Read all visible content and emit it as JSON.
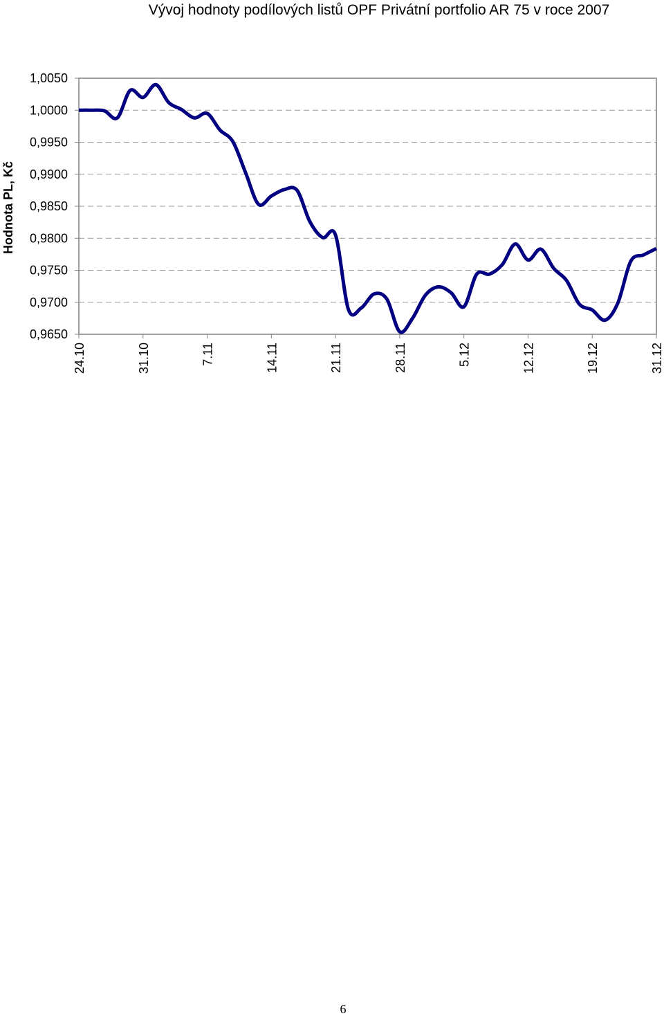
{
  "chart_data": {
    "type": "line",
    "title": "Vývoj hodnoty podílových listů OPF Privátní portfolio AR 75 v roce 2007",
    "y_label": "Hodnota PL, Kč",
    "categories": [
      "24.10",
      null,
      null,
      null,
      null,
      "31.10",
      null,
      null,
      null,
      null,
      "7.11",
      null,
      null,
      null,
      null,
      "14.11",
      null,
      null,
      null,
      null,
      "21.11",
      null,
      null,
      null,
      null,
      "28.11",
      null,
      null,
      null,
      null,
      "5.12",
      null,
      null,
      null,
      null,
      "12.12",
      null,
      null,
      null,
      null,
      "19.12",
      null,
      null,
      null,
      null,
      "31.12"
    ],
    "series": [
      {
        "color": "#000080",
        "values": [
          1.0,
          1.0,
          0.9999,
          0.9988,
          1.0031,
          1.002,
          1.004,
          1.0012,
          1.0001,
          0.9988,
          0.9995,
          0.9969,
          0.9951,
          0.9902,
          0.9853,
          0.9866,
          0.9876,
          0.9875,
          0.9826,
          0.9801,
          0.9805,
          0.9689,
          0.9691,
          0.9713,
          0.9705,
          0.9654,
          0.9675,
          0.9711,
          0.9724,
          0.9715,
          0.9693,
          0.9744,
          0.9744,
          0.9759,
          0.9791,
          0.9766,
          0.9783,
          0.9753,
          0.9734,
          0.9697,
          0.9688,
          0.9672,
          0.9699,
          0.9764,
          0.9774,
          0.9784
        ]
      }
    ],
    "ylim": [
      0.965,
      1.005
    ],
    "yticks": [
      {
        "value": 0.965,
        "label": "0,9650"
      },
      {
        "value": 0.97,
        "label": "0,9700"
      },
      {
        "value": 0.975,
        "label": "0,9750"
      },
      {
        "value": 0.98,
        "label": "0,9800"
      },
      {
        "value": 0.985,
        "label": "0,9850"
      },
      {
        "value": 0.99,
        "label": "0,9900"
      },
      {
        "value": 0.995,
        "label": "0,9950"
      },
      {
        "value": 1.0,
        "label": "1,0000"
      },
      {
        "value": 1.005,
        "label": "1,0050"
      }
    ],
    "grid": true
  },
  "page_number": "6"
}
